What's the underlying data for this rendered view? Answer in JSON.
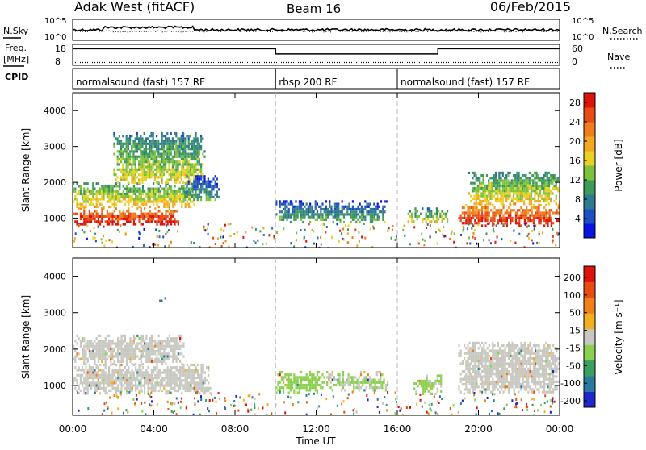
{
  "header": {
    "station": "Adak West (fitACF)",
    "beam": "Beam 16",
    "date": "06/Feb/2015"
  },
  "noise_panel": {
    "left_label": "N.Sky",
    "right_label": "N.Search",
    "left_ticks": [
      "10^5",
      "10^0"
    ],
    "right_ticks": [
      "10^5",
      "10^0"
    ]
  },
  "freq_panel": {
    "left_label_line1": "Freq.",
    "left_label_line2": "[MHz]",
    "right_label": "Nave",
    "left_ticks": [
      "18",
      "8"
    ],
    "right_ticks": [
      "60",
      "0"
    ],
    "freq_steps": [
      {
        "t_start": 0,
        "t_end": 10,
        "mhz": 16.5
      },
      {
        "t_start": 10,
        "t_end": 18,
        "mhz": 13.5
      },
      {
        "t_start": 18,
        "t_end": 24,
        "mhz": 16.5
      }
    ],
    "nave_level": 8
  },
  "cpid": {
    "label": "CPID",
    "segments": [
      {
        "t_start": 0,
        "t_end": 10,
        "name": "normalsound (fast) 157 RF"
      },
      {
        "t_start": 10,
        "t_end": 16,
        "name": "rbsp 200 RF"
      },
      {
        "t_start": 16,
        "t_end": 24,
        "name": "normalsound (fast) 157 RF"
      }
    ]
  },
  "chart_data": [
    {
      "type": "heatmap",
      "title": "",
      "xlabel": "Time UT",
      "ylabel": "Slant Range [km]",
      "xlim": [
        0,
        24
      ],
      "ylim": [
        180,
        4500
      ],
      "x_ticks": [
        "00:00",
        "04:00",
        "08:00",
        "12:00",
        "16:00",
        "20:00",
        "00:00"
      ],
      "y_ticks": [
        1000,
        2000,
        3000,
        4000
      ],
      "colorbar": {
        "label": "Power [dB]",
        "ticks": [
          4,
          8,
          12,
          16,
          20,
          24,
          28
        ],
        "range": [
          0,
          30
        ],
        "colors": [
          "#0a14e0",
          "#1f4fc2",
          "#2e7a8e",
          "#3d9a58",
          "#7ec23c",
          "#e8d224",
          "#f2a820",
          "#f07c1c",
          "#e84c14",
          "#dc140c"
        ]
      },
      "echo_regions": [
        {
          "t_start": 0.0,
          "t_end": 5.2,
          "r_low": 800,
          "r_high": 1300,
          "power": 27
        },
        {
          "t_start": 0.0,
          "t_end": 6.0,
          "r_low": 1300,
          "r_high": 2000,
          "power": 16
        },
        {
          "t_start": 2.0,
          "t_end": 6.5,
          "r_low": 2000,
          "r_high": 3400,
          "power": 13
        },
        {
          "t_start": 5.5,
          "t_end": 7.2,
          "r_low": 1500,
          "r_high": 2200,
          "power": 8
        },
        {
          "t_start": 10.0,
          "t_end": 15.5,
          "r_low": 900,
          "r_high": 1500,
          "power": 9
        },
        {
          "t_start": 16.5,
          "t_end": 18.5,
          "r_low": 900,
          "r_high": 1300,
          "power": 14
        },
        {
          "t_start": 19.0,
          "t_end": 24.0,
          "r_low": 800,
          "r_high": 1400,
          "power": 26
        },
        {
          "t_start": 19.5,
          "t_end": 24.0,
          "r_low": 1400,
          "r_high": 2300,
          "power": 15
        }
      ]
    },
    {
      "type": "heatmap",
      "title": "",
      "xlabel": "Time UT",
      "ylabel": "Slant Range [km]",
      "xlim": [
        0,
        24
      ],
      "ylim": [
        180,
        4500
      ],
      "x_ticks": [
        "00:00",
        "04:00",
        "08:00",
        "12:00",
        "16:00",
        "20:00",
        "00:00"
      ],
      "y_ticks": [
        1000,
        2000,
        3000,
        4000
      ],
      "colorbar": {
        "label": "Velocity [m s⁻¹]",
        "ticks": [
          200,
          100,
          50,
          15,
          -15,
          -50,
          -100,
          -200
        ],
        "range": [
          -250,
          250
        ],
        "colors": [
          "#1e28c8",
          "#2a7aa0",
          "#3aa060",
          "#8cd050",
          "#c8c8c0",
          "#f2b020",
          "#f08018",
          "#e84c10",
          "#dc140c"
        ]
      },
      "echo_regions": [
        {
          "t_start": 0.0,
          "t_end": 6.8,
          "r_low": 800,
          "r_high": 1600,
          "velocity": 0
        },
        {
          "t_start": 0.0,
          "t_end": 5.5,
          "r_low": 1600,
          "r_high": 2400,
          "velocity": 0
        },
        {
          "t_start": 4.0,
          "t_end": 4.7,
          "r_low": 3300,
          "r_high": 3500,
          "velocity": -180
        },
        {
          "t_start": 10.0,
          "t_end": 12.5,
          "r_low": 800,
          "r_high": 1400,
          "velocity": -60
        },
        {
          "t_start": 12.5,
          "t_end": 15.5,
          "r_low": 900,
          "r_high": 1400,
          "velocity": -30
        },
        {
          "t_start": 16.8,
          "t_end": 18.2,
          "r_low": 800,
          "r_high": 1300,
          "velocity": -40
        },
        {
          "t_start": 19.0,
          "t_end": 24.0,
          "r_low": 800,
          "r_high": 2200,
          "velocity": 0
        }
      ]
    }
  ]
}
